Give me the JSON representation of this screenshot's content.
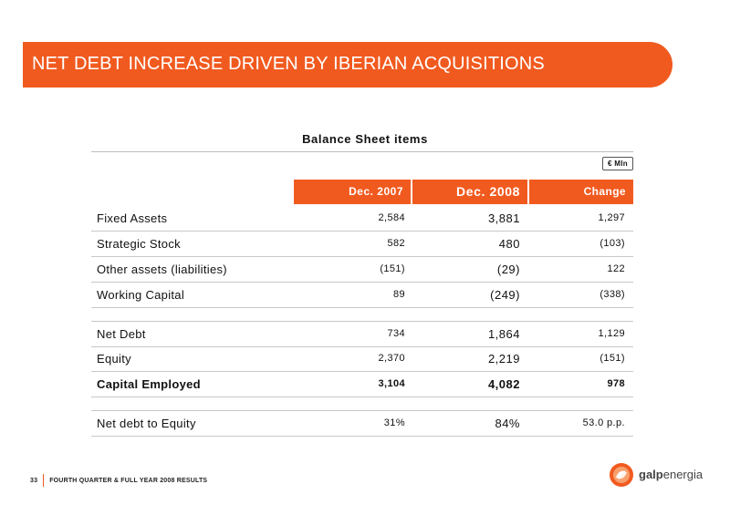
{
  "slide": {
    "title": "NET DEBT INCREASE DRIVEN BY IBERIAN ACQUISITIONS",
    "table_heading": "Balance Sheet items",
    "unit": "€ Mln"
  },
  "columns": {
    "col1": "Dec. 2007",
    "col2": "Dec. 2008",
    "col3": "Change"
  },
  "rows": [
    {
      "label": "Fixed Assets",
      "v2007": "2,584",
      "v2008": "3,881",
      "change": "1,297"
    },
    {
      "label": "Strategic Stock",
      "v2007": "582",
      "v2008": "480",
      "change": "(103)"
    },
    {
      "label": "Other assets (liabilities)",
      "v2007": "(151)",
      "v2008": "(29)",
      "change": "122"
    },
    {
      "label": "Working Capital",
      "v2007": "89",
      "v2008": "(249)",
      "change": "(338)"
    },
    {
      "label": "Net Debt",
      "v2007": "734",
      "v2008": "1,864",
      "change": "1,129"
    },
    {
      "label": "Equity",
      "v2007": "2,370",
      "v2008": "2,219",
      "change": "(151)"
    },
    {
      "label": "Capital Employed",
      "v2007": "3,104",
      "v2008": "4,082",
      "change": "978"
    },
    {
      "label": "Net debt to Equity",
      "v2007": "31%",
      "v2008": "84%",
      "change": "53.0 p.p."
    }
  ],
  "footer": {
    "page_number": "33",
    "text": "FOURTH QUARTER & FULL YEAR 2008 RESULTS"
  },
  "logo": {
    "word_bold": "galp",
    "word_light": "energia"
  },
  "colors": {
    "accent": "#f15a1f"
  }
}
